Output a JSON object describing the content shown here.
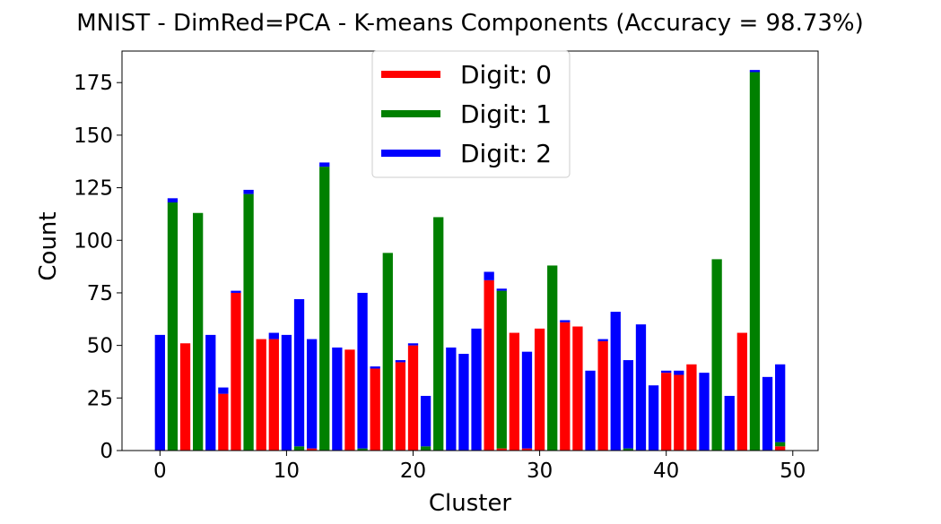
{
  "chart_data": {
    "type": "bar",
    "stacked": true,
    "title": "MNIST - DimRed=PCA - K-means Components (Accuracy = 98.73%)",
    "xlabel": "Cluster",
    "ylabel": "Count",
    "xlim": [
      -3,
      52
    ],
    "ylim": [
      0,
      190
    ],
    "xticks": [
      0,
      10,
      20,
      30,
      40,
      50
    ],
    "yticks": [
      0,
      25,
      50,
      75,
      100,
      125,
      150,
      175
    ],
    "legend_position": "top-center",
    "grid": false,
    "categories": [
      0,
      1,
      2,
      3,
      4,
      5,
      6,
      7,
      8,
      9,
      10,
      11,
      12,
      13,
      14,
      15,
      16,
      17,
      18,
      19,
      20,
      21,
      22,
      23,
      24,
      25,
      26,
      27,
      28,
      29,
      30,
      31,
      32,
      33,
      34,
      35,
      36,
      37,
      38,
      39,
      40,
      41,
      42,
      43,
      44,
      45,
      46,
      47,
      48,
      49
    ],
    "series": [
      {
        "name": "Digit: 0",
        "color": "#ff0000",
        "values": [
          0,
          0,
          51,
          0,
          0,
          27,
          75,
          0,
          53,
          53,
          0,
          0,
          1,
          0,
          0,
          48,
          0,
          39,
          0,
          42,
          50,
          0,
          0,
          0,
          0,
          0,
          81,
          1,
          56,
          1,
          58,
          0,
          61,
          59,
          0,
          52,
          0,
          0,
          0,
          0,
          37,
          36,
          41,
          0,
          0,
          0,
          56,
          0,
          0,
          2
        ]
      },
      {
        "name": "Digit: 1",
        "color": "#008000",
        "values": [
          0,
          118,
          0,
          113,
          0,
          0,
          0,
          122,
          0,
          0,
          0,
          2,
          0,
          135,
          0,
          0,
          1,
          0,
          94,
          0,
          0,
          2,
          111,
          0,
          0,
          0,
          0,
          75,
          0,
          0,
          0,
          88,
          0,
          0,
          0,
          0,
          0,
          1,
          0,
          0,
          0,
          0,
          0,
          0,
          91,
          0,
          0,
          180,
          0,
          2
        ]
      },
      {
        "name": "Digit: 2",
        "color": "#0000ff",
        "values": [
          55,
          2,
          0,
          0,
          55,
          3,
          1,
          2,
          0,
          3,
          55,
          70,
          52,
          2,
          49,
          0,
          74,
          1,
          0,
          1,
          1,
          24,
          0,
          49,
          46,
          58,
          4,
          1,
          0,
          46,
          0,
          0,
          1,
          0,
          38,
          1,
          66,
          42,
          60,
          31,
          1,
          2,
          0,
          37,
          0,
          26,
          0,
          1,
          35,
          37
        ]
      }
    ]
  }
}
